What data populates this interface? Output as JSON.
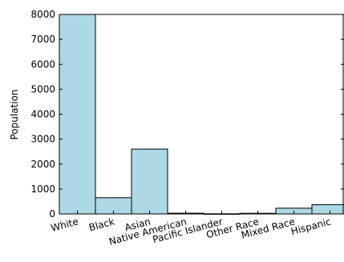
{
  "chart_data": {
    "type": "bar",
    "title": "",
    "xlabel": "",
    "ylabel": "Population",
    "categories": [
      "White",
      "Black",
      "Asian",
      "Native American",
      "Pacific Islander",
      "Other Race",
      "Mixed Race",
      "Hispanic"
    ],
    "values": [
      8000,
      650,
      2600,
      30,
      5,
      25,
      230,
      370
    ],
    "ylim": [
      0,
      8000
    ],
    "yticks": [
      0,
      1000,
      2000,
      3000,
      4000,
      5000,
      6000,
      7000,
      8000
    ],
    "ytick_labels": [
      "0",
      "1000",
      "2000",
      "3000",
      "4000",
      "5000",
      "6000",
      "7000",
      "8000"
    ],
    "grid": false,
    "legend": "none",
    "colors": {
      "bar_fill": "#add8e6",
      "bar_edge": "#000000",
      "axis": "#000000"
    }
  }
}
